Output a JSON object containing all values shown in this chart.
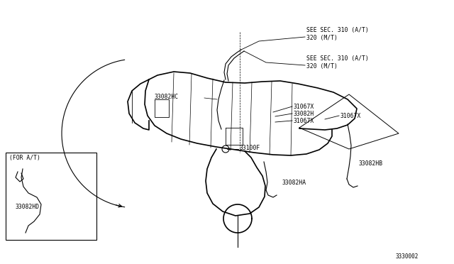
{
  "bg_color": "#ffffff",
  "line_color": "#000000",
  "fig_width": 6.4,
  "fig_height": 3.72,
  "dpi": 100,
  "diagram_number": "3330002",
  "labels": {
    "see_sec_310_1": "SEE SEC. 310 (A/T)\n320 (M/T)",
    "see_sec_310_2": "SEE SEC. 310 (A/T)\n320 (M/T)",
    "33082HC": "33082HC",
    "31067X_1": "31067X",
    "33082H": "33082H",
    "31067X_2": "31067X",
    "31067X_3": "31067X",
    "33100F": "33100F",
    "33082HB": "33082HB",
    "33082HA": "33082HA",
    "for_at": "(FOR A/T)",
    "33082HD": "33082HD"
  },
  "lw": 0.8,
  "lw_thick": 1.2
}
